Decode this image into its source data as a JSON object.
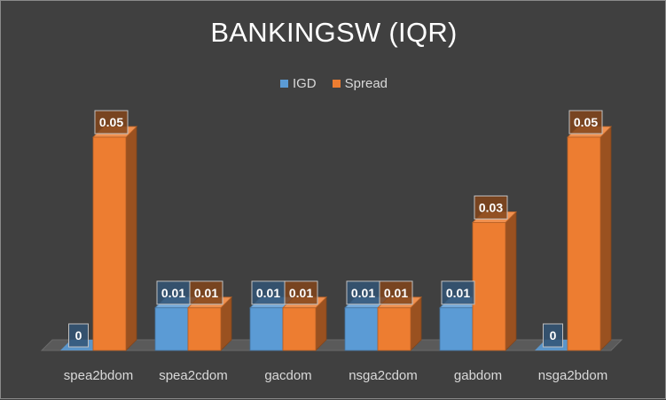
{
  "chart_data": {
    "type": "bar",
    "title": "BANKINGSW (IQR)",
    "categories": [
      "spea2bdom",
      "spea2cdom",
      "gacdom",
      "nsga2cdom",
      "gabdom",
      "nsga2bdom"
    ],
    "series": [
      {
        "name": "IGD",
        "values": [
          0,
          0.01,
          0.01,
          0.01,
          0.01,
          0
        ],
        "labels": [
          "0",
          "0.01",
          "0.01",
          "0.01",
          "0.01",
          "0"
        ],
        "color": "#5b9bd5"
      },
      {
        "name": "Spread",
        "values": [
          0.05,
          0.01,
          0.01,
          0.01,
          0.03,
          0.05
        ],
        "labels": [
          "0.05",
          "0.01",
          "0.01",
          "0.01",
          "0.03",
          "0.05"
        ],
        "color": "#ed7d31"
      }
    ],
    "ylim": [
      0,
      0.05
    ],
    "legend": "top",
    "grid": false,
    "style": "3d-clustered-column"
  }
}
